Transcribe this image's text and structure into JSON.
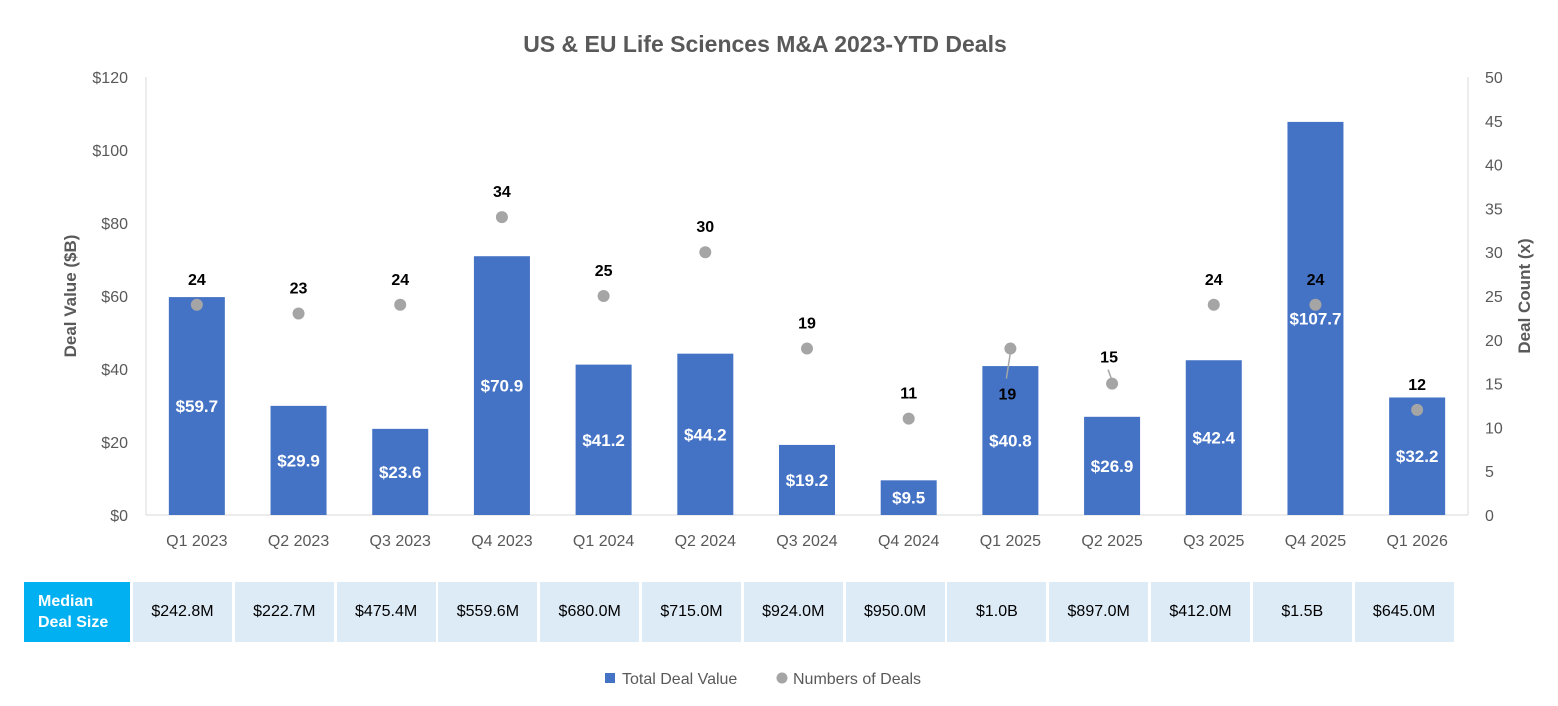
{
  "chart_data": {
    "type": "bar",
    "title": "US & EU Life Sciences M&A 2023-YTD Deals",
    "categories": [
      "Q1 2023",
      "Q2 2023",
      "Q3 2023",
      "Q4 2023",
      "Q1 2024",
      "Q2 2024",
      "Q3 2024",
      "Q4 2024",
      "Q1 2025",
      "Q2 2025",
      "Q3 2025",
      "Q4 2025",
      "Q1 2026"
    ],
    "series": [
      {
        "name": "Total Deal Value",
        "type": "bar",
        "axis": "left",
        "values": [
          59.7,
          29.9,
          23.6,
          70.9,
          41.2,
          44.2,
          19.2,
          9.5,
          40.8,
          26.9,
          42.4,
          107.7,
          32.2
        ],
        "labels": [
          "$59.7",
          "$29.9",
          "$23.6",
          "$70.9",
          "$41.2",
          "$44.2",
          "$19.2",
          "$9.5",
          "$40.8",
          "$26.9",
          "$42.4",
          "$107.7",
          "$32.2"
        ],
        "color": "#4472C4"
      },
      {
        "name": "Numbers of Deals",
        "type": "scatter",
        "axis": "right",
        "values": [
          24,
          23,
          24,
          34,
          25,
          30,
          19,
          11,
          19,
          15,
          24,
          24,
          12
        ],
        "labels": [
          "24",
          "23",
          "24",
          "34",
          "25",
          "30",
          "19",
          "11",
          "19",
          "15",
          "24",
          "24",
          "12"
        ],
        "color": "#A5A5A5"
      }
    ],
    "ylabel": "Deal Value ($B)",
    "y2label": "Deal Count (x)",
    "ylim": [
      0,
      120
    ],
    "y2lim": [
      0,
      50
    ],
    "yticks": [
      "$0",
      "$20",
      "$40",
      "$60",
      "$80",
      "$100",
      "$120"
    ],
    "y2ticks": [
      "0",
      "5",
      "10",
      "15",
      "20",
      "25",
      "30",
      "35",
      "40",
      "45",
      "50"
    ],
    "grid": false,
    "legend": "bottom-center"
  },
  "median_table": {
    "header": "Median Deal Size",
    "header_line1": "Median",
    "header_line2": "Deal Size",
    "values": [
      "$242.8M",
      "$222.7M",
      "$475.4M",
      "$559.6M",
      "$680.0M",
      "$715.0M",
      "$924.0M",
      "$950.0M",
      "$1.0B",
      "$897.0M",
      "$412.0M",
      "$1.5B",
      "$645.0M"
    ]
  },
  "legend": {
    "bar_label": "Total Deal Value",
    "dot_label": "Numbers of Deals"
  }
}
